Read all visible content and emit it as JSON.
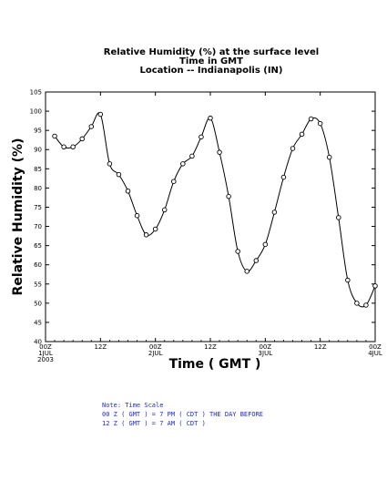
{
  "title_lines": [
    "Relative Humidity (%) at the surface level",
    "Time in GMT",
    "Location -- Indianapolis (IN)"
  ],
  "notes": [
    "Note: Time Scale",
    "00 Z ( GMT ) = 7 PM ( CDT ) THE DAY BEFORE",
    "12 Z ( GMT ) = 7 AM ( CDT )"
  ],
  "colors": {
    "line": "#000000",
    "note_text": "#1a2fbf"
  },
  "chart_data": {
    "type": "line",
    "title": "Relative Humidity (%) at the surface level",
    "xlabel": "Time ( GMT )",
    "ylabel": "Relative Humidity (%)",
    "ylim": [
      40,
      105
    ],
    "yticks": [
      40,
      45,
      50,
      55,
      60,
      65,
      70,
      75,
      80,
      85,
      90,
      95,
      100,
      105
    ],
    "xlim": [
      0,
      72
    ],
    "x_unit": "hours since 00Z 1 JUL 2003",
    "xticks": [
      {
        "x": 0,
        "lines": [
          "00Z",
          "1JUL",
          "2003"
        ]
      },
      {
        "x": 12,
        "lines": [
          "12Z"
        ]
      },
      {
        "x": 24,
        "lines": [
          "00Z",
          "2JUL"
        ]
      },
      {
        "x": 36,
        "lines": [
          "12Z"
        ]
      },
      {
        "x": 48,
        "lines": [
          "00Z",
          "3JUL"
        ]
      },
      {
        "x": 60,
        "lines": [
          "12Z"
        ]
      },
      {
        "x": 72,
        "lines": [
          "00Z",
          "4JUL"
        ]
      }
    ],
    "grid": false,
    "marker": "open-circle",
    "series": [
      {
        "x": [
          2,
          4,
          6,
          8,
          10,
          12,
          14,
          16,
          18,
          20,
          22,
          24,
          26,
          28,
          30,
          32,
          34,
          36,
          38,
          40,
          42,
          44,
          46,
          48,
          50,
          52,
          54,
          56,
          58,
          60,
          62,
          64,
          66,
          68,
          70,
          72
        ],
        "y": [
          93.5,
          90.7,
          90.7,
          92.8,
          96,
          99.2,
          86.3,
          83.5,
          79.2,
          72.8,
          67.8,
          69.3,
          74.3,
          81.7,
          86.3,
          88.3,
          93.3,
          98.2,
          89.3,
          77.8,
          63.5,
          58.3,
          61.1,
          65.3,
          73.7,
          82.8,
          90.3,
          94,
          98,
          96.8,
          88,
          72.3,
          56,
          50,
          49.5,
          54.5
        ]
      }
    ]
  }
}
